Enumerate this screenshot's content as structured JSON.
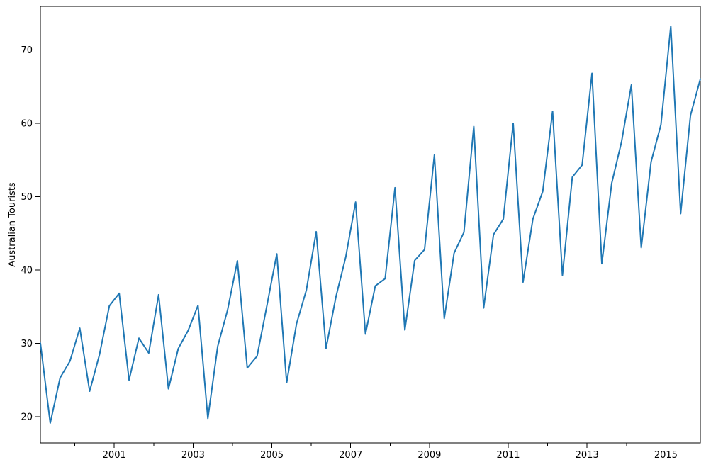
{
  "figure": {
    "background": "#ffffff",
    "border_color": "#000000"
  },
  "chart_data": {
    "type": "line",
    "title": "",
    "xlabel": "",
    "ylabel": "Australian Tourists",
    "grid": false,
    "legend": "none",
    "x_axis": {
      "range": [
        1999.125,
        2015.875
      ],
      "year_ticks_all": [
        2000,
        2001,
        2002,
        2003,
        2004,
        2005,
        2006,
        2007,
        2008,
        2009,
        2010,
        2011,
        2012,
        2013,
        2014,
        2015
      ],
      "year_ticks_labeled": [
        2001,
        2003,
        2005,
        2007,
        2009,
        2011,
        2013,
        2015
      ]
    },
    "y_axis": {
      "range": [
        16.44,
        75.96
      ],
      "ticks": [
        20,
        30,
        40,
        50,
        60,
        70
      ]
    },
    "series": [
      {
        "name": "Australian Tourists",
        "color": "#1f77b4",
        "quarters": [
          "1999-Q1",
          "1999-Q2",
          "1999-Q3",
          "1999-Q4",
          "2000-Q1",
          "2000-Q2",
          "2000-Q3",
          "2000-Q4",
          "2001-Q1",
          "2001-Q2",
          "2001-Q3",
          "2001-Q4",
          "2002-Q1",
          "2002-Q2",
          "2002-Q3",
          "2002-Q4",
          "2003-Q1",
          "2003-Q2",
          "2003-Q3",
          "2003-Q4",
          "2004-Q1",
          "2004-Q2",
          "2004-Q3",
          "2004-Q4",
          "2005-Q1",
          "2005-Q2",
          "2005-Q3",
          "2005-Q4",
          "2006-Q1",
          "2006-Q2",
          "2006-Q3",
          "2006-Q4",
          "2007-Q1",
          "2007-Q2",
          "2007-Q3",
          "2007-Q4",
          "2008-Q1",
          "2008-Q2",
          "2008-Q3",
          "2008-Q4",
          "2009-Q1",
          "2009-Q2",
          "2009-Q3",
          "2009-Q4",
          "2010-Q1",
          "2010-Q2",
          "2010-Q3",
          "2010-Q4",
          "2011-Q1",
          "2011-Q2",
          "2011-Q3",
          "2011-Q4",
          "2012-Q1",
          "2012-Q2",
          "2012-Q3",
          "2012-Q4",
          "2013-Q1",
          "2013-Q2",
          "2013-Q3",
          "2013-Q4",
          "2014-Q1",
          "2014-Q2",
          "2014-Q3",
          "2014-Q4",
          "2015-Q1",
          "2015-Q2",
          "2015-Q3",
          "2015-Q4"
        ],
        "values": [
          30.05,
          19.15,
          25.32,
          27.59,
          32.08,
          23.49,
          28.48,
          35.12,
          36.84,
          25.01,
          30.72,
          28.69,
          36.64,
          23.82,
          29.31,
          31.77,
          35.18,
          19.78,
          29.6,
          34.54,
          41.27,
          26.66,
          28.28,
          35.19,
          42.21,
          24.65,
          32.67,
          37.26,
          45.24,
          29.35,
          36.34,
          41.78,
          49.28,
          31.28,
          37.85,
          38.84,
          51.24,
          31.84,
          41.32,
          42.8,
          55.71,
          33.41,
          42.32,
          45.16,
          59.58,
          34.84,
          44.84,
          46.97,
          60.02,
          38.37,
          46.98,
          50.73,
          61.65,
          39.3,
          52.67,
          54.33,
          66.83,
          40.87,
          51.83,
          57.49,
          65.25,
          43.06,
          54.76,
          59.83,
          73.26,
          47.7,
          61.1,
          66.06
        ]
      }
    ]
  }
}
